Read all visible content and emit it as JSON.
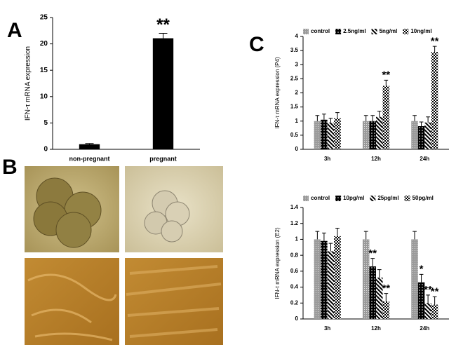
{
  "panel_labels": [
    "A",
    "B",
    "C"
  ],
  "chart_data": [
    {
      "type": "bar",
      "ylabel": "IFN-τ mRNA expression",
      "categories": [
        "non-pregnant",
        "pregnant"
      ],
      "values": [
        0.9,
        21
      ],
      "errors": [
        0.2,
        1.0
      ],
      "color": "#000000",
      "ylim": [
        0,
        25
      ],
      "yticks": [
        0,
        5,
        10,
        15,
        20,
        25
      ],
      "annotations": [
        {
          "text": "**",
          "category": "pregnant"
        }
      ]
    },
    {
      "type": "bar",
      "ylabel": "IFN-τ mRNA expression (P4)",
      "categories": [
        "3h",
        "12h",
        "24h"
      ],
      "series": [
        {
          "name": "control",
          "pattern": "dots",
          "values": [
            1,
            1,
            1
          ],
          "errors": [
            0.2,
            0.2,
            0.2
          ]
        },
        {
          "name": "2.5ng/ml",
          "pattern": "black-dots",
          "values": [
            1.05,
            1.0,
            0.82
          ],
          "errors": [
            0.2,
            0.2,
            0.15
          ]
        },
        {
          "name": "5ng/ml",
          "pattern": "stripes",
          "values": [
            0.95,
            1.15,
            0.95
          ],
          "errors": [
            0.15,
            0.2,
            0.2
          ]
        },
        {
          "name": "10ng/ml",
          "pattern": "checker",
          "values": [
            1.1,
            2.25,
            3.45
          ],
          "errors": [
            0.2,
            0.2,
            0.2
          ]
        }
      ],
      "ylim": [
        0,
        4
      ],
      "yticks": [
        0,
        0.5,
        1,
        1.5,
        2,
        2.5,
        3,
        3.5,
        4
      ],
      "annotations": [
        {
          "text": "**",
          "series": "10ng/ml",
          "category": "12h"
        },
        {
          "text": "**",
          "series": "10ng/ml",
          "category": "24h"
        }
      ]
    },
    {
      "type": "bar",
      "ylabel": "IFN-τ mRNA expression (E2)",
      "categories": [
        "3h",
        "12h",
        "24h"
      ],
      "series": [
        {
          "name": "control",
          "pattern": "dots",
          "values": [
            1,
            1,
            1
          ],
          "errors": [
            0.1,
            0.1,
            0.1
          ]
        },
        {
          "name": "10pg/ml",
          "pattern": "black-dots",
          "values": [
            0.98,
            0.66,
            0.46
          ],
          "errors": [
            0.1,
            0.1,
            0.1
          ]
        },
        {
          "name": "25pg/ml",
          "pattern": "stripes",
          "values": [
            0.85,
            0.52,
            0.2
          ],
          "errors": [
            0.1,
            0.1,
            0.1
          ]
        },
        {
          "name": "50pg/ml",
          "pattern": "checker",
          "values": [
            1.04,
            0.22,
            0.18
          ],
          "errors": [
            0.1,
            0.1,
            0.1
          ]
        }
      ],
      "ylim": [
        0,
        1.4
      ],
      "yticks": [
        0,
        0.2,
        0.4,
        0.6,
        0.8,
        1,
        1.2,
        1.4
      ],
      "annotations": [
        {
          "text": "**",
          "series": "10pg/ml",
          "category": "12h"
        },
        {
          "text": "**",
          "series": "50pg/ml",
          "category": "12h"
        },
        {
          "text": "*",
          "series": "10pg/ml",
          "category": "24h"
        },
        {
          "text": "**",
          "series": "25pg/ml",
          "category": "24h"
        },
        {
          "text": "**",
          "series": "50pg/ml",
          "category": "24h"
        }
      ]
    }
  ]
}
